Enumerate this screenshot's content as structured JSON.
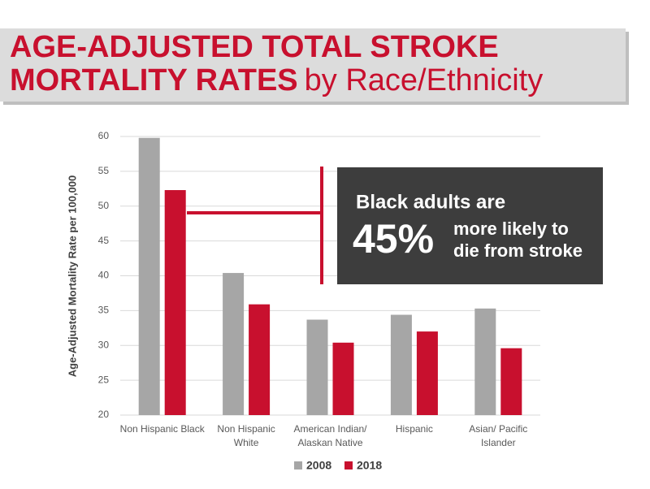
{
  "chart_data": {
    "type": "bar",
    "title": [
      "AGE-ADJUSTED TOTAL STROKE",
      "MORTALITY RATES",
      "by Race/Ethnicity"
    ],
    "y_label": "Age-Adjusted Mortality Rate per 100,000",
    "categories": [
      "Non Hispanic Black",
      "Non Hispanic\nWhite",
      "American Indian/\nAlaskan Native",
      "Hispanic",
      "Asian/ Pacific\nIslander"
    ],
    "series": [
      {
        "name": "2008",
        "color": "#a6a6a6",
        "values": [
          59.8,
          40.4,
          33.7,
          34.4,
          35.3
        ]
      },
      {
        "name": "2018",
        "color": "#c8102e",
        "values": [
          52.3,
          35.9,
          30.4,
          32.0,
          29.6
        ]
      }
    ],
    "ylim": [
      20,
      60
    ],
    "yticks": [
      20,
      25,
      30,
      35,
      40,
      45,
      50,
      55,
      60
    ],
    "grid": true,
    "annotation": [
      "Black adults are",
      "45%",
      "more likely to",
      "die from stroke"
    ]
  }
}
